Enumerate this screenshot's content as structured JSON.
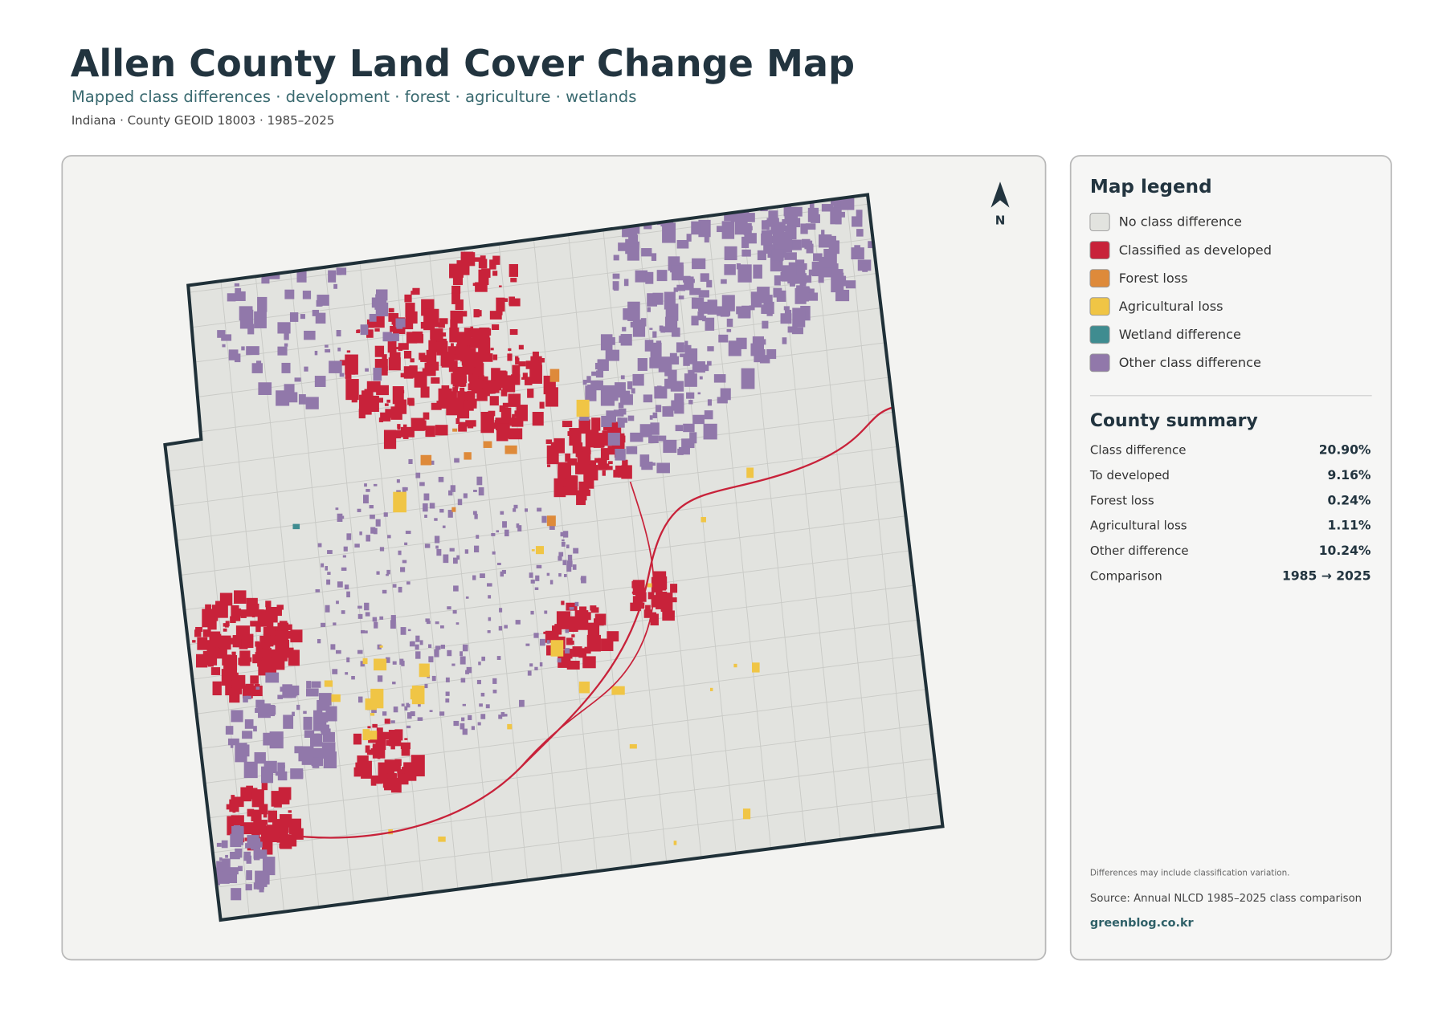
{
  "header": {
    "title": "Allen County Land Cover Change Map",
    "subtitle": "Mapped class differences · development · forest · agriculture · wetlands",
    "meta": "Indiana · County GEOID 18003 · 1985–2025"
  },
  "north": "N",
  "legend": {
    "title": "Map legend",
    "items": [
      {
        "label": "No class difference",
        "color": "#e2e3df"
      },
      {
        "label": "Classified as developed",
        "color": "#c8223a"
      },
      {
        "label": "Forest loss",
        "color": "#de8a3a"
      },
      {
        "label": "Agricultural loss",
        "color": "#f0c545"
      },
      {
        "label": "Wetland difference",
        "color": "#3f8c90"
      },
      {
        "label": "Other class difference",
        "color": "#9178aa"
      }
    ]
  },
  "summary": {
    "title": "County summary",
    "rows": [
      {
        "label": "Class difference",
        "value": "20.90%"
      },
      {
        "label": "To developed",
        "value": "9.16%"
      },
      {
        "label": "Forest loss",
        "value": "0.24%"
      },
      {
        "label": "Agricultural loss",
        "value": "1.11%"
      },
      {
        "label": "Other difference",
        "value": "10.24%"
      },
      {
        "label": "Comparison",
        "value": "1985 → 2025"
      }
    ]
  },
  "footer": {
    "note": "Differences may include classification variation.",
    "source": "Source: Annual NLCD 1985–2025 class comparison",
    "credit": "greenblog.co.kr"
  }
}
